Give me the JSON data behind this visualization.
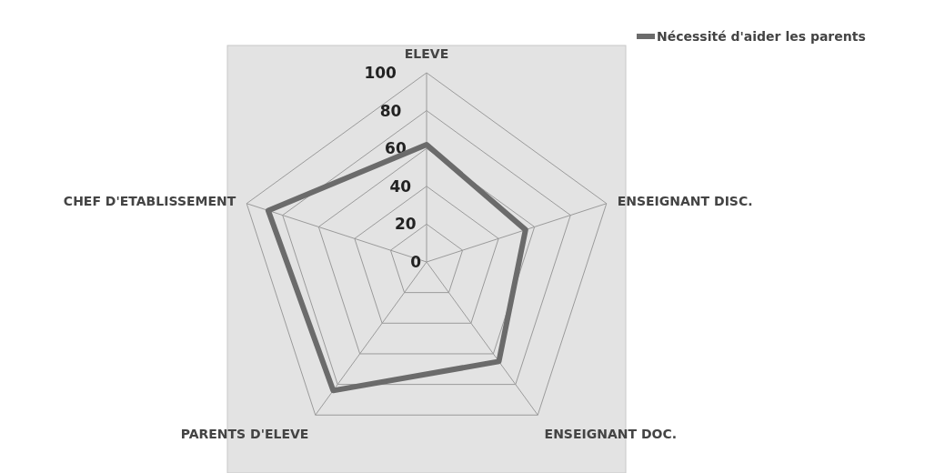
{
  "chart_data": {
    "type": "radar",
    "categories": [
      "ELEVE",
      "ENSEIGNANT DISC.",
      "ENSEIGNANT DOC.",
      "PARENTS D'ELEVE",
      "CHEF D'ETABLISSEMENT"
    ],
    "series": [
      {
        "name": "Nécessité d'aider les parents",
        "color": "#6b6b6b",
        "values": [
          62,
          55,
          65,
          84,
          88
        ]
      }
    ],
    "ylim": [
      0,
      100
    ],
    "yticks": [
      0,
      20,
      40,
      60,
      80,
      100
    ],
    "grid": true,
    "legend": "top right",
    "marker": "none"
  }
}
